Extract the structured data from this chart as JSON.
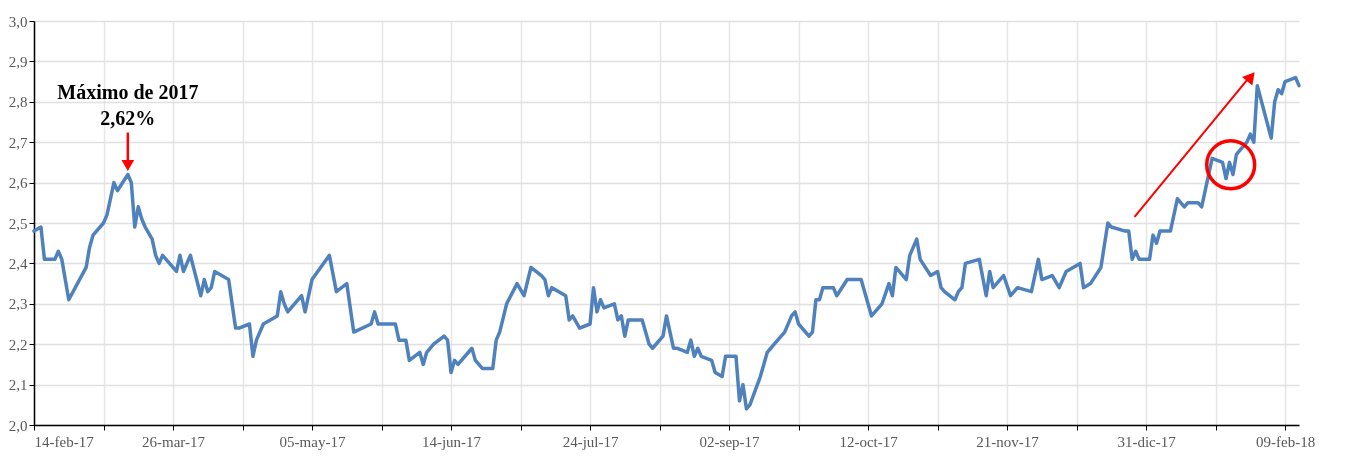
{
  "chart_data": {
    "type": "line",
    "marker": "none",
    "line_style": "solid",
    "grid": true,
    "x": [
      "2017-02-14",
      "2017-02-16",
      "2017-02-17",
      "2017-02-20",
      "2017-02-21",
      "2017-02-22",
      "2017-02-24",
      "2017-03-01",
      "2017-03-02",
      "2017-03-03",
      "2017-03-06",
      "2017-03-07",
      "2017-03-09",
      "2017-03-10",
      "2017-03-13",
      "2017-03-14",
      "2017-03-15",
      "2017-03-16",
      "2017-03-17",
      "2017-03-18",
      "2017-03-20",
      "2017-03-21",
      "2017-03-22",
      "2017-03-23",
      "2017-03-27",
      "2017-03-28",
      "2017-03-29",
      "2017-03-31",
      "2017-04-03",
      "2017-04-04",
      "2017-04-05",
      "2017-04-06",
      "2017-04-07",
      "2017-04-11",
      "2017-04-13",
      "2017-04-14",
      "2017-04-17",
      "2017-04-18",
      "2017-04-19",
      "2017-04-21",
      "2017-04-25",
      "2017-04-26",
      "2017-04-27",
      "2017-04-28",
      "2017-05-02",
      "2017-05-03",
      "2017-05-05",
      "2017-05-10",
      "2017-05-12",
      "2017-05-15",
      "2017-05-17",
      "2017-05-22",
      "2017-05-23",
      "2017-05-24",
      "2017-05-26",
      "2017-05-29",
      "2017-05-30",
      "2017-06-01",
      "2017-06-02",
      "2017-06-05",
      "2017-06-06",
      "2017-06-07",
      "2017-06-09",
      "2017-06-12",
      "2017-06-13",
      "2017-06-14",
      "2017-06-15",
      "2017-06-16",
      "2017-06-20",
      "2017-06-21",
      "2017-06-23",
      "2017-06-26",
      "2017-06-27",
      "2017-06-28",
      "2017-06-30",
      "2017-07-03",
      "2017-07-05",
      "2017-07-07",
      "2017-07-10",
      "2017-07-11",
      "2017-07-12",
      "2017-07-13",
      "2017-07-17",
      "2017-07-18",
      "2017-07-19",
      "2017-07-21",
      "2017-07-24",
      "2017-07-25",
      "2017-07-26",
      "2017-07-27",
      "2017-07-28",
      "2017-07-31",
      "2017-08-01",
      "2017-08-02",
      "2017-08-03",
      "2017-08-04",
      "2017-08-08",
      "2017-08-10",
      "2017-08-11",
      "2017-08-14",
      "2017-08-15",
      "2017-08-17",
      "2017-08-18",
      "2017-08-21",
      "2017-08-22",
      "2017-08-23",
      "2017-08-24",
      "2017-08-25",
      "2017-08-28",
      "2017-08-29",
      "2017-08-31",
      "2017-09-01",
      "2017-09-04",
      "2017-09-05",
      "2017-09-06",
      "2017-09-07",
      "2017-09-08",
      "2017-09-11",
      "2017-09-13",
      "2017-09-14",
      "2017-09-15",
      "2017-09-18",
      "2017-09-20",
      "2017-09-21",
      "2017-09-22",
      "2017-09-25",
      "2017-09-26",
      "2017-09-27",
      "2017-09-28",
      "2017-09-29",
      "2017-10-02",
      "2017-10-03",
      "2017-10-06",
      "2017-10-10",
      "2017-10-11",
      "2017-10-13",
      "2017-10-16",
      "2017-10-18",
      "2017-10-19",
      "2017-10-20",
      "2017-10-23",
      "2017-10-24",
      "2017-10-26",
      "2017-10-27",
      "2017-10-30",
      "2017-11-01",
      "2017-11-02",
      "2017-11-03",
      "2017-11-06",
      "2017-11-07",
      "2017-11-08",
      "2017-11-09",
      "2017-11-13",
      "2017-11-15",
      "2017-11-16",
      "2017-11-17",
      "2017-11-20",
      "2017-11-22",
      "2017-11-24",
      "2017-11-28",
      "2017-11-30",
      "2017-12-01",
      "2017-12-04",
      "2017-12-06",
      "2017-12-08",
      "2017-12-12",
      "2017-12-13",
      "2017-12-15",
      "2017-12-18",
      "2017-12-20",
      "2017-12-21",
      "2017-12-25",
      "2017-12-26",
      "2017-12-27",
      "2017-12-28",
      "2017-12-29",
      "2018-01-01",
      "2018-01-02",
      "2018-01-03",
      "2018-01-04",
      "2018-01-07",
      "2018-01-09",
      "2018-01-11",
      "2018-01-12",
      "2018-01-15",
      "2018-01-16",
      "2018-01-19",
      "2018-01-22",
      "2018-01-23",
      "2018-01-24",
      "2018-01-25",
      "2018-01-26",
      "2018-01-29",
      "2018-01-30",
      "2018-01-31",
      "2018-02-01",
      "2018-02-05",
      "2018-02-06",
      "2018-02-07",
      "2018-02-08",
      "2018-02-09",
      "2018-02-12",
      "2018-02-13"
    ],
    "series": [
      {
        "color": "#4f81bd",
        "values": [
          2.48,
          2.49,
          2.41,
          2.41,
          2.43,
          2.41,
          2.31,
          2.39,
          2.44,
          2.47,
          2.5,
          2.52,
          2.6,
          2.58,
          2.62,
          2.6,
          2.49,
          2.54,
          2.51,
          2.49,
          2.46,
          2.42,
          2.4,
          2.42,
          2.38,
          2.42,
          2.38,
          2.42,
          2.32,
          2.36,
          2.33,
          2.34,
          2.38,
          2.36,
          2.24,
          2.24,
          2.25,
          2.17,
          2.21,
          2.25,
          2.27,
          2.33,
          2.3,
          2.28,
          2.32,
          2.28,
          2.36,
          2.42,
          2.33,
          2.35,
          2.23,
          2.25,
          2.28,
          2.25,
          2.25,
          2.25,
          2.21,
          2.21,
          2.16,
          2.18,
          2.15,
          2.18,
          2.2,
          2.22,
          2.21,
          2.13,
          2.16,
          2.15,
          2.19,
          2.16,
          2.14,
          2.14,
          2.21,
          2.23,
          2.3,
          2.35,
          2.32,
          2.39,
          2.37,
          2.36,
          2.32,
          2.34,
          2.32,
          2.26,
          2.27,
          2.24,
          2.25,
          2.34,
          2.28,
          2.31,
          2.29,
          2.3,
          2.26,
          2.27,
          2.22,
          2.26,
          2.26,
          2.2,
          2.19,
          2.22,
          2.27,
          2.19,
          2.19,
          2.18,
          2.21,
          2.17,
          2.19,
          2.17,
          2.16,
          2.13,
          2.12,
          2.17,
          2.17,
          2.06,
          2.1,
          2.04,
          2.05,
          2.12,
          2.18,
          2.19,
          2.2,
          2.23,
          2.27,
          2.28,
          2.25,
          2.22,
          2.23,
          2.31,
          2.31,
          2.34,
          2.34,
          2.32,
          2.36,
          2.36,
          2.33,
          2.27,
          2.3,
          2.35,
          2.32,
          2.39,
          2.36,
          2.42,
          2.46,
          2.41,
          2.37,
          2.38,
          2.34,
          2.33,
          2.31,
          2.33,
          2.34,
          2.4,
          2.41,
          2.32,
          2.38,
          2.34,
          2.37,
          2.32,
          2.34,
          2.33,
          2.41,
          2.36,
          2.37,
          2.34,
          2.38,
          2.4,
          2.34,
          2.35,
          2.39,
          2.5,
          2.49,
          2.48,
          2.48,
          2.41,
          2.43,
          2.41,
          2.41,
          2.47,
          2.45,
          2.48,
          2.48,
          2.56,
          2.54,
          2.55,
          2.55,
          2.54,
          2.66,
          2.65,
          2.61,
          2.65,
          2.62,
          2.67,
          2.7,
          2.72,
          2.7,
          2.84,
          2.71,
          2.8,
          2.83,
          2.82,
          2.85,
          2.86,
          2.84
        ]
      }
    ],
    "xlim": [
      "2017-02-14",
      "2018-02-13"
    ],
    "xticks": [
      {
        "value": "2017-02-14",
        "label": "14-feb-17"
      },
      {
        "value": "2017-03-06",
        "label": null
      },
      {
        "value": "2017-03-26",
        "label": "26-mar-17"
      },
      {
        "value": "2017-04-15",
        "label": null
      },
      {
        "value": "2017-05-05",
        "label": "05-may-17"
      },
      {
        "value": "2017-05-25",
        "label": null
      },
      {
        "value": "2017-06-14",
        "label": "14-jun-17"
      },
      {
        "value": "2017-07-04",
        "label": null
      },
      {
        "value": "2017-07-24",
        "label": "24-jul-17"
      },
      {
        "value": "2017-08-13",
        "label": null
      },
      {
        "value": "2017-09-02",
        "label": "02-sep-17"
      },
      {
        "value": "2017-09-22",
        "label": null
      },
      {
        "value": "2017-10-12",
        "label": "12-oct-17"
      },
      {
        "value": "2017-11-01",
        "label": null
      },
      {
        "value": "2017-11-21",
        "label": "21-nov-17"
      },
      {
        "value": "2017-12-11",
        "label": null
      },
      {
        "value": "2017-12-31",
        "label": "31-dic-17"
      },
      {
        "value": "2018-01-20",
        "label": null
      },
      {
        "value": "2018-02-09",
        "label": "09-feb-18"
      }
    ],
    "ylim": [
      2.0,
      3.0
    ],
    "yticks": [
      {
        "value": 2.0,
        "label": "2,0"
      },
      {
        "value": 2.1,
        "label": "2,1"
      },
      {
        "value": 2.2,
        "label": "2,2"
      },
      {
        "value": 2.3,
        "label": "2,3"
      },
      {
        "value": 2.4,
        "label": "2,4"
      },
      {
        "value": 2.5,
        "label": "2,5"
      },
      {
        "value": 2.6,
        "label": "2,6"
      },
      {
        "value": 2.7,
        "label": "2,7"
      },
      {
        "value": 2.8,
        "label": "2,8"
      },
      {
        "value": 2.9,
        "label": "2,9"
      },
      {
        "value": 3.0,
        "label": "3,0"
      }
    ],
    "annotations": [
      {
        "text": "Máximo de 2017\n2,62%",
        "x": "2017-03-13",
        "y": 2.62
      }
    ]
  }
}
